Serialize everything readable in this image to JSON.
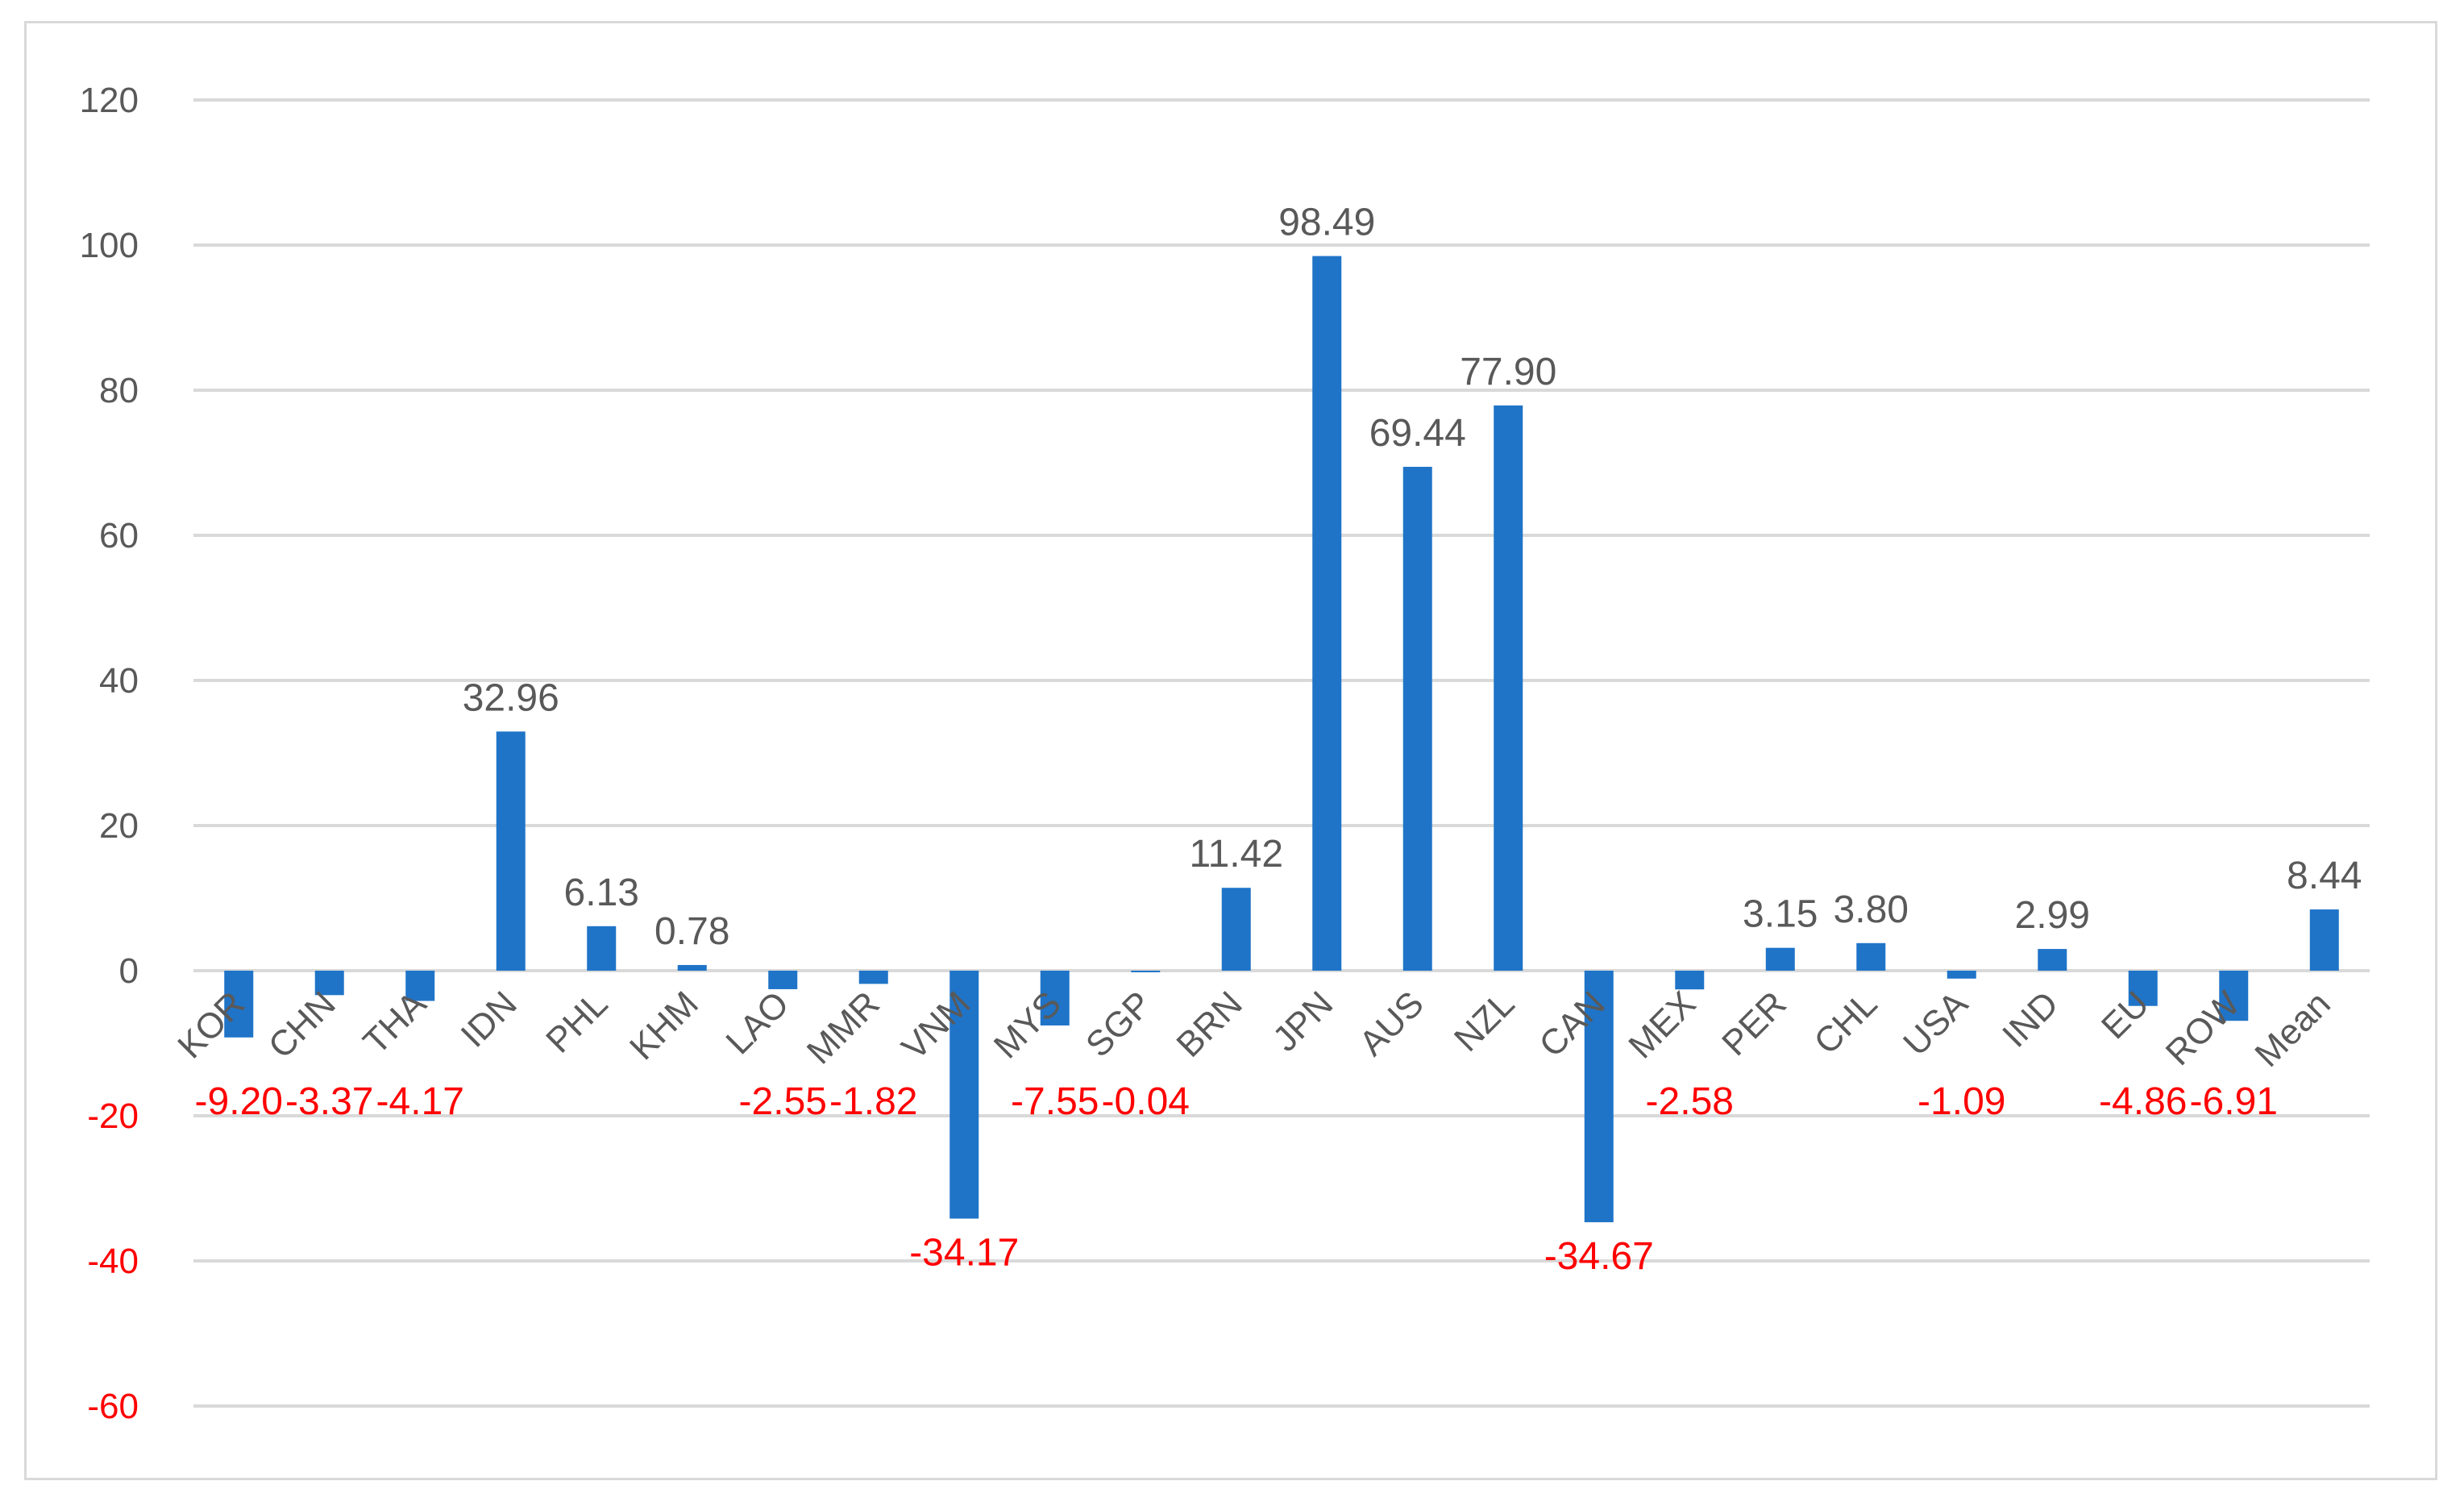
{
  "chart_data": {
    "type": "bar",
    "title": "",
    "xlabel": "",
    "ylabel": "",
    "categories": [
      "KOR",
      "CHN",
      "THA",
      "IDN",
      "PHL",
      "KHM",
      "LAO",
      "MMR",
      "VNM",
      "MYS",
      "SGP",
      "BRN",
      "JPN",
      "AUS",
      "NZL",
      "CAN",
      "MEX",
      "PER",
      "CHL",
      "USA",
      "IND",
      "EU",
      "ROW",
      "Mean"
    ],
    "values": [
      -9.2,
      -3.37,
      -4.17,
      32.96,
      6.13,
      0.78,
      -2.55,
      -1.82,
      -34.17,
      -7.55,
      -0.04,
      11.42,
      98.49,
      69.44,
      77.9,
      -34.67,
      -2.58,
      3.15,
      3.8,
      -1.09,
      2.99,
      -4.86,
      -6.91,
      8.44
    ],
    "data_labels": [
      "-9.20",
      "-3.37",
      "-4.17",
      "32.96",
      "6.13",
      "0.78",
      "-2.55",
      "-1.82",
      "-34.17",
      "-7.55",
      "-0.04",
      "11.42",
      "98.49",
      "69.44",
      "77.90",
      "-34.67",
      "-2.58",
      "3.15",
      "3.80",
      "-1.09",
      "2.99",
      "-4.86",
      "-6.91",
      "8.44"
    ],
    "ylim": [
      -60,
      120
    ],
    "yticks": [
      -60,
      -40,
      -20,
      0,
      20,
      40,
      60,
      80,
      100,
      120
    ],
    "ytick_labels": [
      "-60",
      "-40",
      "-20",
      "0",
      "20",
      "40",
      "60",
      "80",
      "100",
      "120"
    ],
    "grid": true,
    "legend": "none",
    "colors": {
      "bar": "#1f74c8",
      "positive_label": "#595959",
      "negative_label": "#ff0000",
      "grid": "#d9d9d9"
    }
  }
}
